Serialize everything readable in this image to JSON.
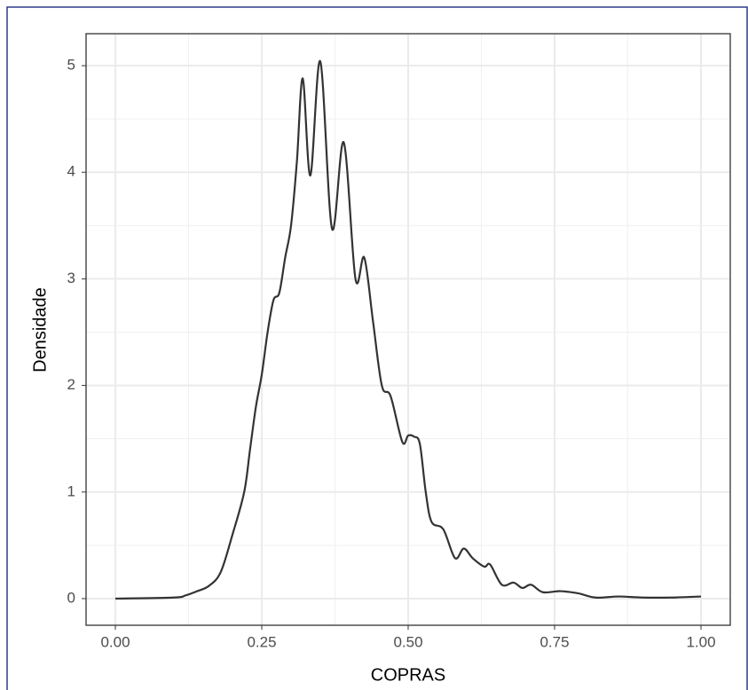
{
  "chart_data": {
    "type": "line",
    "x_label": "COPRAS",
    "y_label": "Densidade",
    "series": [
      {
        "name": "Densidade",
        "color": "#333333",
        "x": [
          0,
          0.1,
          0.12,
          0.14,
          0.16,
          0.18,
          0.2,
          0.22,
          0.23,
          0.24,
          0.25,
          0.26,
          0.27,
          0.28,
          0.29,
          0.3,
          0.31,
          0.32,
          0.333,
          0.35,
          0.37,
          0.39,
          0.41,
          0.425,
          0.44,
          0.455,
          0.47,
          0.49,
          0.5,
          0.51,
          0.52,
          0.53,
          0.54,
          0.56,
          0.58,
          0.595,
          0.61,
          0.63,
          0.64,
          0.66,
          0.68,
          0.695,
          0.71,
          0.73,
          0.76,
          0.79,
          0.82,
          0.86,
          0.9,
          0.95,
          1.0
        ],
        "values": [
          0,
          0.01,
          0.03,
          0.07,
          0.12,
          0.25,
          0.6,
          1.0,
          1.4,
          1.8,
          2.1,
          2.5,
          2.8,
          2.87,
          3.2,
          3.5,
          4.1,
          4.88,
          3.97,
          5.04,
          3.47,
          4.28,
          3.0,
          3.2,
          2.6,
          2.0,
          1.9,
          1.47,
          1.53,
          1.52,
          1.45,
          1.0,
          0.72,
          0.65,
          0.38,
          0.47,
          0.38,
          0.3,
          0.32,
          0.13,
          0.15,
          0.1,
          0.13,
          0.06,
          0.07,
          0.05,
          0.01,
          0.02,
          0.01,
          0.01,
          0.02
        ]
      }
    ],
    "xlim": [
      -0.05,
      1.05
    ],
    "ylim": [
      -0.25,
      5.3
    ],
    "xticks": [
      {
        "value": 0,
        "label": "0.00"
      },
      {
        "value": 0.25,
        "label": "0.25"
      },
      {
        "value": 0.5,
        "label": "0.50"
      },
      {
        "value": 0.75,
        "label": "0.75"
      },
      {
        "value": 1,
        "label": "1.00"
      }
    ],
    "yticks": [
      0,
      1,
      2,
      3,
      4,
      5
    ],
    "grid": true
  }
}
